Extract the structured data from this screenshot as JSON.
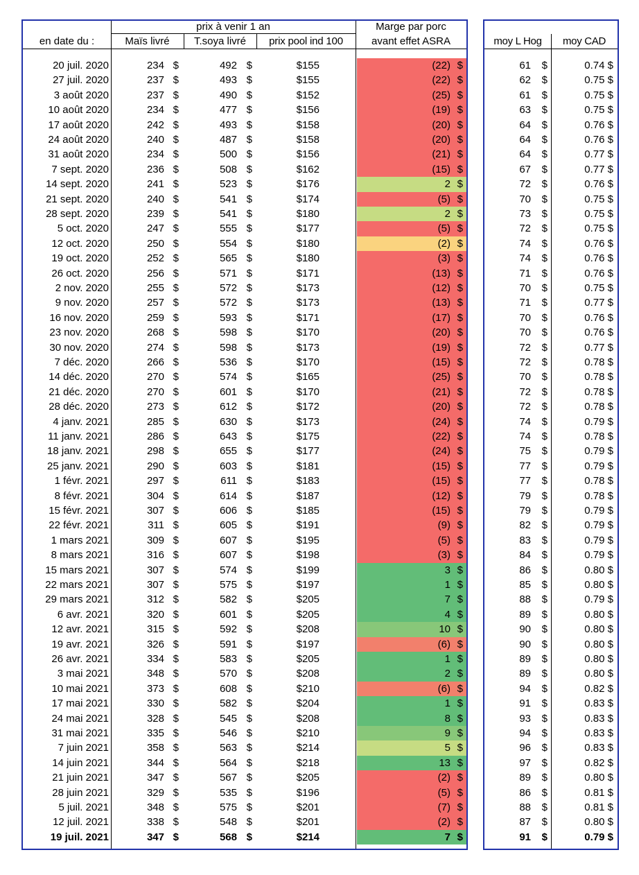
{
  "headers": {
    "group_label": "prix à venir 1 an",
    "marge_line1": "Marge par porc",
    "marge_line2": "avant effet ASRA",
    "date": "en date du :",
    "mais": "Maïs livré",
    "soya": "T.soya livré",
    "pool": "prix pool ind 100",
    "hog": "moy L Hog",
    "cad": "moy CAD"
  },
  "colors": {
    "frame": "#2233aa",
    "red": "#f46b69",
    "salmon": "#f2806c",
    "orange": "#fad37f",
    "lightgreen": "#c6dc83",
    "midgreen": "#88c779",
    "green": "#62bd78"
  },
  "rows": [
    {
      "date": "20 juil. 2020",
      "mais": "234",
      "soya": "492",
      "pool": "$155",
      "marge": "(22)",
      "hog": "61",
      "cad": "0.74 $",
      "color": "red"
    },
    {
      "date": "27 juil. 2020",
      "mais": "237",
      "soya": "493",
      "pool": "$155",
      "marge": "(22)",
      "hog": "62",
      "cad": "0.75 $",
      "color": "red"
    },
    {
      "date": "3 août 2020",
      "mais": "237",
      "soya": "490",
      "pool": "$152",
      "marge": "(25)",
      "hog": "61",
      "cad": "0.75 $",
      "color": "red"
    },
    {
      "date": "10 août 2020",
      "mais": "234",
      "soya": "477",
      "pool": "$156",
      "marge": "(19)",
      "hog": "63",
      "cad": "0.75 $",
      "color": "red"
    },
    {
      "date": "17 août 2020",
      "mais": "242",
      "soya": "493",
      "pool": "$158",
      "marge": "(20)",
      "hog": "64",
      "cad": "0.76 $",
      "color": "red"
    },
    {
      "date": "24 août 2020",
      "mais": "240",
      "soya": "487",
      "pool": "$158",
      "marge": "(20)",
      "hog": "64",
      "cad": "0.76 $",
      "color": "red"
    },
    {
      "date": "31 août 2020",
      "mais": "234",
      "soya": "500",
      "pool": "$156",
      "marge": "(21)",
      "hog": "64",
      "cad": "0.77 $",
      "color": "red"
    },
    {
      "date": "7 sept. 2020",
      "mais": "236",
      "soya": "508",
      "pool": "$162",
      "marge": "(15)",
      "hog": "67",
      "cad": "0.77 $",
      "color": "red"
    },
    {
      "date": "14 sept. 2020",
      "mais": "241",
      "soya": "523",
      "pool": "$176",
      "marge": "2",
      "hog": "72",
      "cad": "0.76 $",
      "color": "lightgreen"
    },
    {
      "date": "21 sept. 2020",
      "mais": "240",
      "soya": "541",
      "pool": "$174",
      "marge": "(5)",
      "hog": "70",
      "cad": "0.75 $",
      "color": "red"
    },
    {
      "date": "28 sept. 2020",
      "mais": "239",
      "soya": "541",
      "pool": "$180",
      "marge": "2",
      "hog": "73",
      "cad": "0.75 $",
      "color": "lightgreen"
    },
    {
      "date": "5 oct. 2020",
      "mais": "247",
      "soya": "555",
      "pool": "$177",
      "marge": "(5)",
      "hog": "72",
      "cad": "0.75 $",
      "color": "red"
    },
    {
      "date": "12 oct. 2020",
      "mais": "250",
      "soya": "554",
      "pool": "$180",
      "marge": "(2)",
      "hog": "74",
      "cad": "0.76 $",
      "color": "orange"
    },
    {
      "date": "19 oct. 2020",
      "mais": "252",
      "soya": "565",
      "pool": "$180",
      "marge": "(3)",
      "hog": "74",
      "cad": "0.76 $",
      "color": "red"
    },
    {
      "date": "26 oct. 2020",
      "mais": "256",
      "soya": "571",
      "pool": "$171",
      "marge": "(13)",
      "hog": "71",
      "cad": "0.76 $",
      "color": "red"
    },
    {
      "date": "2 nov. 2020",
      "mais": "255",
      "soya": "572",
      "pool": "$173",
      "marge": "(12)",
      "hog": "70",
      "cad": "0.75 $",
      "color": "red"
    },
    {
      "date": "9 nov. 2020",
      "mais": "257",
      "soya": "572",
      "pool": "$173",
      "marge": "(13)",
      "hog": "71",
      "cad": "0.77 $",
      "color": "red"
    },
    {
      "date": "16 nov. 2020",
      "mais": "259",
      "soya": "593",
      "pool": "$171",
      "marge": "(17)",
      "hog": "70",
      "cad": "0.76 $",
      "color": "red"
    },
    {
      "date": "23 nov. 2020",
      "mais": "268",
      "soya": "598",
      "pool": "$170",
      "marge": "(20)",
      "hog": "70",
      "cad": "0.76 $",
      "color": "red"
    },
    {
      "date": "30 nov. 2020",
      "mais": "274",
      "soya": "598",
      "pool": "$173",
      "marge": "(19)",
      "hog": "72",
      "cad": "0.77 $",
      "color": "red"
    },
    {
      "date": "7 déc. 2020",
      "mais": "266",
      "soya": "536",
      "pool": "$170",
      "marge": "(15)",
      "hog": "72",
      "cad": "0.78 $",
      "color": "red"
    },
    {
      "date": "14 déc. 2020",
      "mais": "270",
      "soya": "574",
      "pool": "$165",
      "marge": "(25)",
      "hog": "70",
      "cad": "0.78 $",
      "color": "red"
    },
    {
      "date": "21 déc. 2020",
      "mais": "270",
      "soya": "601",
      "pool": "$170",
      "marge": "(21)",
      "hog": "72",
      "cad": "0.78 $",
      "color": "red"
    },
    {
      "date": "28 déc. 2020",
      "mais": "273",
      "soya": "612",
      "pool": "$172",
      "marge": "(20)",
      "hog": "72",
      "cad": "0.78 $",
      "color": "red"
    },
    {
      "date": "4 janv. 2021",
      "mais": "285",
      "soya": "630",
      "pool": "$173",
      "marge": "(24)",
      "hog": "74",
      "cad": "0.79 $",
      "color": "red"
    },
    {
      "date": "11 janv. 2021",
      "mais": "286",
      "soya": "643",
      "pool": "$175",
      "marge": "(22)",
      "hog": "74",
      "cad": "0.78 $",
      "color": "red"
    },
    {
      "date": "18 janv. 2021",
      "mais": "298",
      "soya": "655",
      "pool": "$177",
      "marge": "(24)",
      "hog": "75",
      "cad": "0.79 $",
      "color": "red"
    },
    {
      "date": "25 janv. 2021",
      "mais": "290",
      "soya": "603",
      "pool": "$181",
      "marge": "(15)",
      "hog": "77",
      "cad": "0.79 $",
      "color": "red"
    },
    {
      "date": "1 févr. 2021",
      "mais": "297",
      "soya": "611",
      "pool": "$183",
      "marge": "(15)",
      "hog": "77",
      "cad": "0.78 $",
      "color": "red"
    },
    {
      "date": "8 févr. 2021",
      "mais": "304",
      "soya": "614",
      "pool": "$187",
      "marge": "(12)",
      "hog": "79",
      "cad": "0.78 $",
      "color": "red"
    },
    {
      "date": "15 févr. 2021",
      "mais": "307",
      "soya": "606",
      "pool": "$185",
      "marge": "(15)",
      "hog": "79",
      "cad": "0.79 $",
      "color": "red"
    },
    {
      "date": "22 févr. 2021",
      "mais": "311",
      "soya": "605",
      "pool": "$191",
      "marge": "(9)",
      "hog": "82",
      "cad": "0.79 $",
      "color": "red"
    },
    {
      "date": "1 mars 2021",
      "mais": "309",
      "soya": "607",
      "pool": "$195",
      "marge": "(5)",
      "hog": "83",
      "cad": "0.79 $",
      "color": "red"
    },
    {
      "date": "8 mars 2021",
      "mais": "316",
      "soya": "607",
      "pool": "$198",
      "marge": "(3)",
      "hog": "84",
      "cad": "0.79 $",
      "color": "red"
    },
    {
      "date": "15 mars 2021",
      "mais": "307",
      "soya": "574",
      "pool": "$199",
      "marge": "3",
      "hog": "86",
      "cad": "0.80 $",
      "color": "green"
    },
    {
      "date": "22 mars 2021",
      "mais": "307",
      "soya": "575",
      "pool": "$197",
      "marge": "1",
      "hog": "85",
      "cad": "0.80 $",
      "color": "green"
    },
    {
      "date": "29 mars 2021",
      "mais": "312",
      "soya": "582",
      "pool": "$205",
      "marge": "7",
      "hog": "88",
      "cad": "0.79 $",
      "color": "green"
    },
    {
      "date": "6 avr. 2021",
      "mais": "320",
      "soya": "601",
      "pool": "$205",
      "marge": "4",
      "hog": "89",
      "cad": "0.80 $",
      "color": "green"
    },
    {
      "date": "12 avr. 2021",
      "mais": "315",
      "soya": "592",
      "pool": "$208",
      "marge": "10",
      "hog": "90",
      "cad": "0.80 $",
      "color": "midgreen"
    },
    {
      "date": "19 avr. 2021",
      "mais": "326",
      "soya": "591",
      "pool": "$197",
      "marge": "(6)",
      "hog": "90",
      "cad": "0.80 $",
      "color": "salmon"
    },
    {
      "date": "26 avr. 2021",
      "mais": "334",
      "soya": "583",
      "pool": "$205",
      "marge": "1",
      "hog": "89",
      "cad": "0.80 $",
      "color": "green"
    },
    {
      "date": "3 mai 2021",
      "mais": "348",
      "soya": "570",
      "pool": "$208",
      "marge": "2",
      "hog": "89",
      "cad": "0.80 $",
      "color": "green"
    },
    {
      "date": "10 mai 2021",
      "mais": "373",
      "soya": "608",
      "pool": "$210",
      "marge": "(6)",
      "hog": "94",
      "cad": "0.82 $",
      "color": "salmon"
    },
    {
      "date": "17 mai 2021",
      "mais": "330",
      "soya": "582",
      "pool": "$204",
      "marge": "1",
      "hog": "91",
      "cad": "0.83 $",
      "color": "green"
    },
    {
      "date": "24 mai 2021",
      "mais": "328",
      "soya": "545",
      "pool": "$208",
      "marge": "8",
      "hog": "93",
      "cad": "0.83 $",
      "color": "green"
    },
    {
      "date": "31 mai 2021",
      "mais": "335",
      "soya": "546",
      "pool": "$210",
      "marge": "9",
      "hog": "94",
      "cad": "0.83 $",
      "color": "midgreen"
    },
    {
      "date": "7 juin 2021",
      "mais": "358",
      "soya": "563",
      "pool": "$214",
      "marge": "5",
      "hog": "96",
      "cad": "0.83 $",
      "color": "lightgreen"
    },
    {
      "date": "14 juin 2021",
      "mais": "344",
      "soya": "564",
      "pool": "$218",
      "marge": "13",
      "hog": "97",
      "cad": "0.82 $",
      "color": "green"
    },
    {
      "date": "21 juin 2021",
      "mais": "347",
      "soya": "567",
      "pool": "$205",
      "marge": "(2)",
      "hog": "89",
      "cad": "0.80 $",
      "color": "red"
    },
    {
      "date": "28 juin 2021",
      "mais": "329",
      "soya": "535",
      "pool": "$196",
      "marge": "(5)",
      "hog": "86",
      "cad": "0.81 $",
      "color": "red"
    },
    {
      "date": "5 juil. 2021",
      "mais": "348",
      "soya": "575",
      "pool": "$201",
      "marge": "(7)",
      "hog": "88",
      "cad": "0.81 $",
      "color": "red"
    },
    {
      "date": "12 juil. 2021",
      "mais": "338",
      "soya": "548",
      "pool": "$201",
      "marge": "(2)",
      "hog": "87",
      "cad": "0.80 $",
      "color": "red"
    },
    {
      "date": "19 juil. 2021",
      "mais": "347",
      "soya": "568",
      "pool": "$214",
      "marge": "7",
      "hog": "91",
      "cad": "0.79 $",
      "color": "green",
      "bold": true
    }
  ]
}
